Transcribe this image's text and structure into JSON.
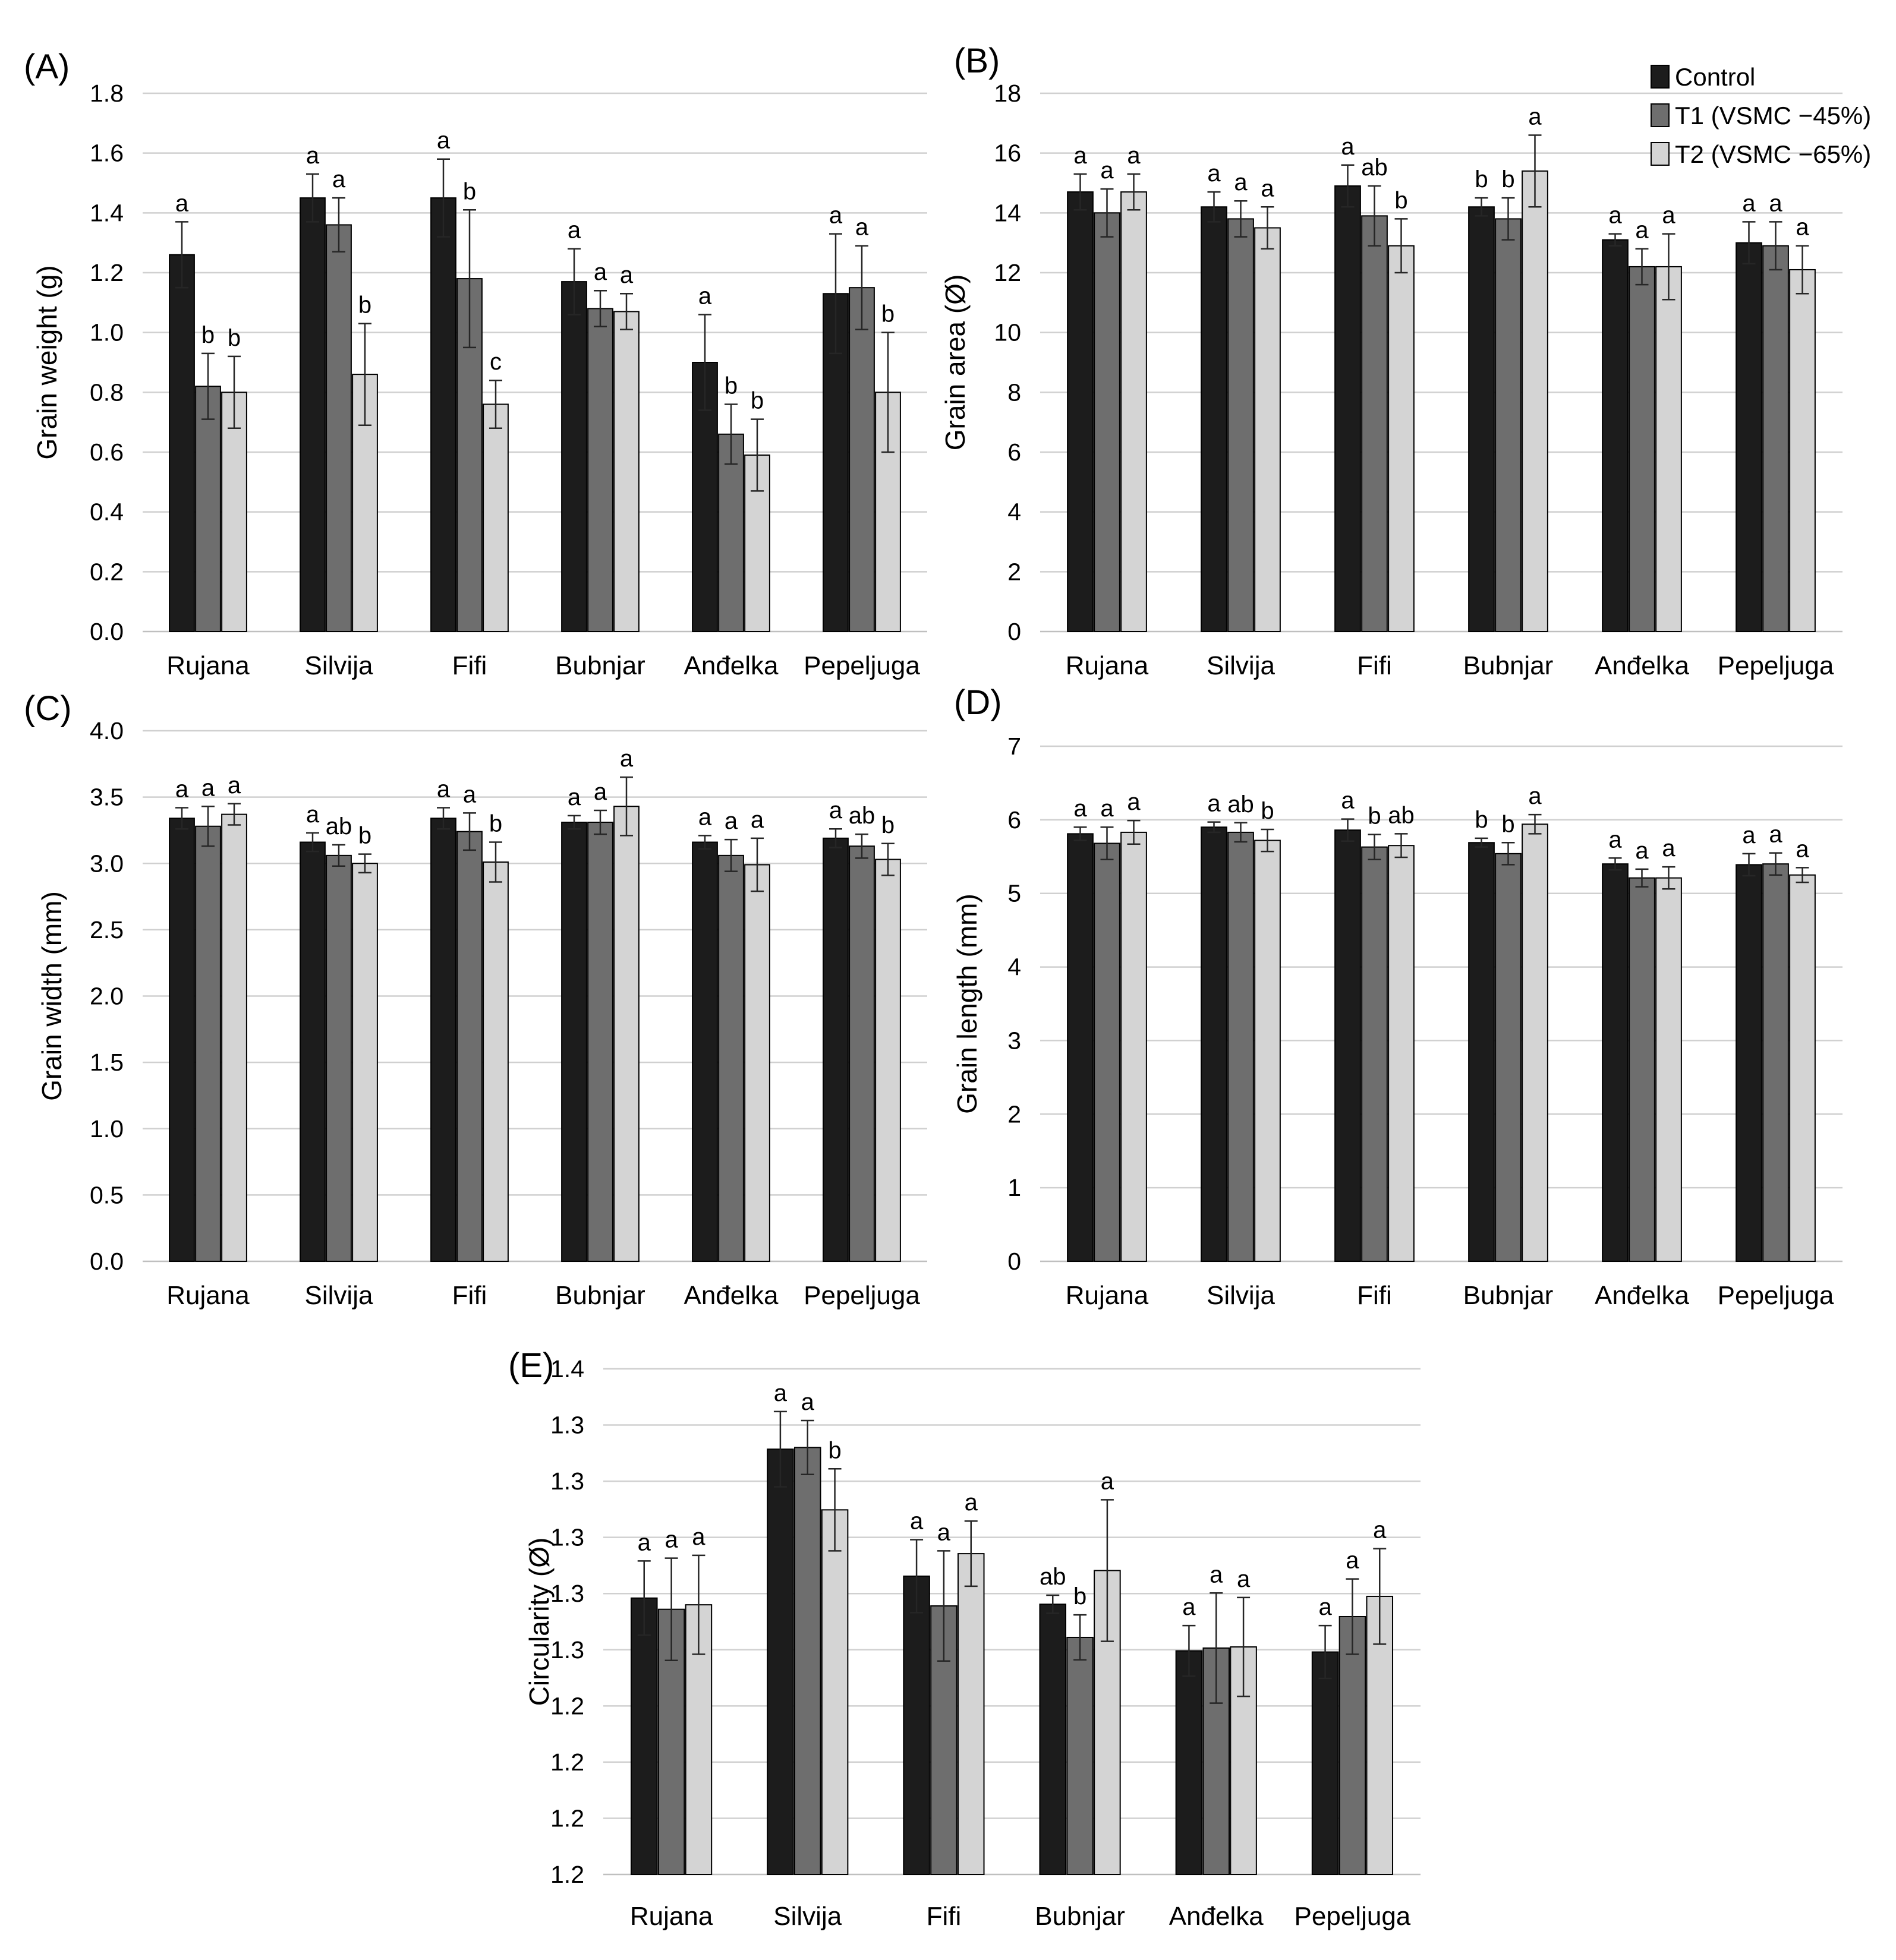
{
  "legend": [
    {
      "label": "Control",
      "color": "#1c1c1c"
    },
    {
      "label": "T1 (VSMC −45%)",
      "color": "#6e6e6e"
    },
    {
      "label": "T2 (VSMC −65%)",
      "color": "#d4d4d4"
    }
  ],
  "chart_data": [
    {
      "panel": "(A)",
      "type": "bar",
      "categories": [
        "Rujana",
        "Silvija",
        "Fifi",
        "Bubnjar",
        "Anđelka",
        "Pepeljuga"
      ],
      "ylabel": "Grain weight (g)",
      "ylim": [
        0,
        1.8
      ],
      "yticks": [
        "0.0",
        "0.2",
        "0.4",
        "0.6",
        "0.8",
        "1.0",
        "1.2",
        "1.4",
        "1.6",
        "1.8"
      ],
      "series": [
        {
          "name": "Control",
          "values": [
            1.26,
            1.45,
            1.45,
            1.17,
            0.9,
            1.13
          ],
          "errors": [
            0.11,
            0.08,
            0.13,
            0.11,
            0.16,
            0.2
          ],
          "letters": [
            "a",
            "a",
            "a",
            "a",
            "a",
            "a"
          ]
        },
        {
          "name": "T1 (VSMC −45%)",
          "values": [
            0.82,
            1.36,
            1.18,
            1.08,
            0.66,
            1.15
          ],
          "errors": [
            0.11,
            0.09,
            0.23,
            0.06,
            0.1,
            0.14
          ],
          "letters": [
            "b",
            "a",
            "b",
            "a",
            "b",
            "a"
          ]
        },
        {
          "name": "T2 (VSMC −65%)",
          "values": [
            0.8,
            0.86,
            0.76,
            1.07,
            0.59,
            0.8
          ],
          "errors": [
            0.12,
            0.17,
            0.08,
            0.06,
            0.12,
            0.2
          ],
          "letters": [
            "b",
            "b",
            "c",
            "a",
            "b",
            "b"
          ]
        }
      ]
    },
    {
      "panel": "(B)",
      "type": "bar",
      "categories": [
        "Rujana",
        "Silvija",
        "Fifi",
        "Bubnjar",
        "Anđelka",
        "Pepeljuga"
      ],
      "ylabel": "Grain area (Ø)",
      "ylim": [
        0,
        18
      ],
      "yticks": [
        "0",
        "2",
        "4",
        "6",
        "8",
        "10",
        "12",
        "14",
        "16",
        "18"
      ],
      "series": [
        {
          "name": "Control",
          "values": [
            14.7,
            14.2,
            14.9,
            14.2,
            13.1,
            13.0
          ],
          "errors": [
            0.6,
            0.5,
            0.7,
            0.3,
            0.2,
            0.7
          ],
          "letters": [
            "a",
            "a",
            "a",
            "b",
            "a",
            "a"
          ]
        },
        {
          "name": "T1 (VSMC −45%)",
          "values": [
            14.0,
            13.8,
            13.9,
            13.8,
            12.2,
            12.9
          ],
          "errors": [
            0.8,
            0.6,
            1.0,
            0.7,
            0.6,
            0.8
          ],
          "letters": [
            "a",
            "a",
            "ab",
            "b",
            "a",
            "a"
          ]
        },
        {
          "name": "T2 (VSMC −65%)",
          "values": [
            14.7,
            13.5,
            12.9,
            15.4,
            12.2,
            12.1
          ],
          "errors": [
            0.6,
            0.7,
            0.9,
            1.2,
            1.1,
            0.8
          ],
          "letters": [
            "a",
            "a",
            "b",
            "a",
            "a",
            "a"
          ]
        }
      ]
    },
    {
      "panel": "(C)",
      "type": "bar",
      "categories": [
        "Rujana",
        "Silvija",
        "Fifi",
        "Bubnjar",
        "Anđelka",
        "Pepeljuga"
      ],
      "ylabel": "Grain width (mm)",
      "ylim": [
        0,
        4.0
      ],
      "yticks": [
        "0.0",
        "0.5",
        "1.0",
        "1.5",
        "2.0",
        "2.5",
        "3.0",
        "3.5",
        "4.0"
      ],
      "series": [
        {
          "name": "Control",
          "values": [
            3.34,
            3.16,
            3.34,
            3.31,
            3.16,
            3.19
          ],
          "errors": [
            0.08,
            0.07,
            0.08,
            0.05,
            0.05,
            0.07
          ],
          "letters": [
            "a",
            "a",
            "a",
            "a",
            "a",
            "a"
          ]
        },
        {
          "name": "T1 (VSMC −45%)",
          "values": [
            3.28,
            3.06,
            3.24,
            3.31,
            3.06,
            3.13
          ],
          "errors": [
            0.15,
            0.08,
            0.14,
            0.09,
            0.12,
            0.09
          ],
          "letters": [
            "a",
            "ab",
            "a",
            "a",
            "a",
            "ab"
          ]
        },
        {
          "name": "T2 (VSMC −65%)",
          "values": [
            3.37,
            3.0,
            3.01,
            3.43,
            2.99,
            3.03
          ],
          "errors": [
            0.08,
            0.07,
            0.15,
            0.22,
            0.2,
            0.12
          ],
          "letters": [
            "a",
            "b",
            "b",
            "a",
            "a",
            "b"
          ]
        }
      ]
    },
    {
      "panel": "(D)",
      "type": "bar",
      "categories": [
        "Rujana",
        "Silvija",
        "Fifi",
        "Bubnjar",
        "Anđelka",
        "Pepeljuga"
      ],
      "ylabel": "Grain length (mm)",
      "ylim": [
        0,
        7
      ],
      "yticks": [
        "0",
        "1",
        "2",
        "3",
        "4",
        "5",
        "6",
        "7"
      ],
      "series": [
        {
          "name": "Control",
          "values": [
            5.81,
            5.9,
            5.86,
            5.69,
            5.4,
            5.39
          ],
          "errors": [
            0.09,
            0.07,
            0.15,
            0.06,
            0.08,
            0.15
          ],
          "letters": [
            "a",
            "a",
            "a",
            "b",
            "a",
            "a"
          ]
        },
        {
          "name": "T1 (VSMC −45%)",
          "values": [
            5.68,
            5.83,
            5.63,
            5.54,
            5.21,
            5.4
          ],
          "errors": [
            0.22,
            0.13,
            0.17,
            0.15,
            0.12,
            0.15
          ],
          "letters": [
            "a",
            "ab",
            "b",
            "b",
            "a",
            "a"
          ]
        },
        {
          "name": "T2 (VSMC −65%)",
          "values": [
            5.83,
            5.72,
            5.65,
            5.94,
            5.21,
            5.25
          ],
          "errors": [
            0.16,
            0.15,
            0.16,
            0.13,
            0.15,
            0.1
          ],
          "letters": [
            "a",
            "b",
            "ab",
            "a",
            "a",
            "a"
          ]
        }
      ]
    },
    {
      "panel": "(E)",
      "type": "bar",
      "categories": [
        "Rujana",
        "Silvija",
        "Fifi",
        "Bubnjar",
        "Anđelka",
        "Pepeljuga"
      ],
      "ylabel": "Circularity (Ø)",
      "ylim": [
        1.19,
        1.28
      ],
      "yticks": [
        "1.2",
        "1.2",
        "1.2",
        "1.2",
        "1.3",
        "1.3",
        "1.3",
        "1.3",
        "1.3",
        "1.4"
      ],
      "series": [
        {
          "name": "Control",
          "values": [
            1.2392,
            1.2657,
            1.2431,
            1.2381,
            1.2298,
            1.2296
          ],
          "errors": [
            0.0066,
            0.0067,
            0.0065,
            0.0016,
            0.0045,
            0.0047
          ],
          "letters": [
            "a",
            "a",
            "a",
            "ab",
            "a",
            "a"
          ]
        },
        {
          "name": "T1 (VSMC −45%)",
          "values": [
            1.2372,
            1.266,
            1.2378,
            1.2322,
            1.2303,
            1.2359
          ],
          "errors": [
            0.0091,
            0.0048,
            0.0098,
            0.004,
            0.0098,
            0.0067
          ],
          "letters": [
            "a",
            "a",
            "a",
            "b",
            "a",
            "a"
          ]
        },
        {
          "name": "T2 (VSMC −65%)",
          "values": [
            1.238,
            1.2549,
            1.2471,
            1.2441,
            1.2305,
            1.2395
          ],
          "errors": [
            0.0088,
            0.0073,
            0.0058,
            0.0126,
            0.0088,
            0.0085
          ],
          "letters": [
            "a",
            "b",
            "a",
            "a",
            "a",
            "a"
          ]
        }
      ]
    }
  ]
}
